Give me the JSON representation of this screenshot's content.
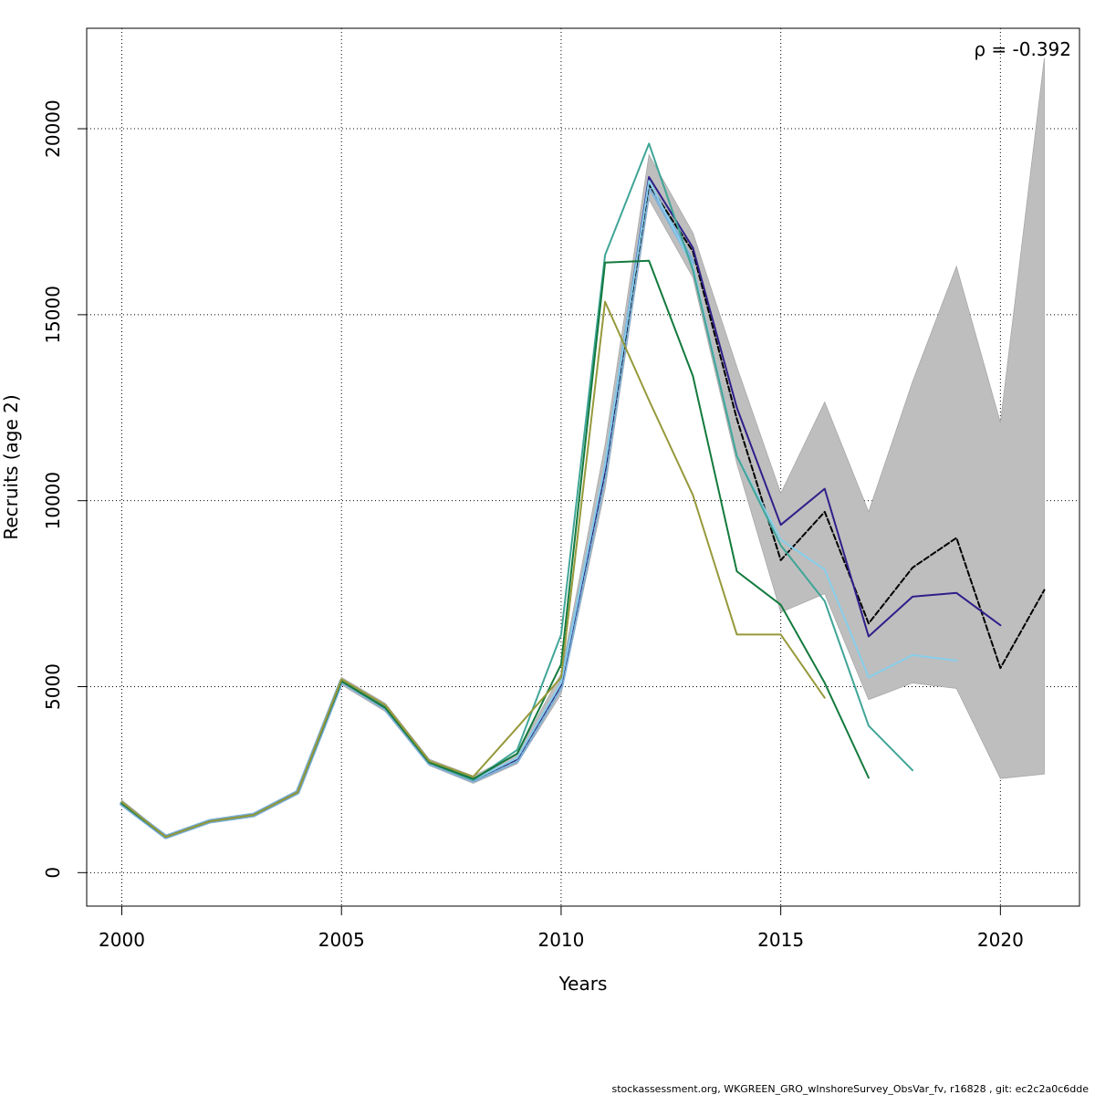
{
  "chart_data": {
    "type": "line",
    "xlabel": "Years",
    "ylabel": "Recruits (age 2)",
    "xlim": [
      1999.2,
      2021.8
    ],
    "ylim": [
      -900,
      22700
    ],
    "x_ticks": [
      2000,
      2005,
      2010,
      2015,
      2020
    ],
    "y_ticks": [
      0,
      5000,
      10000,
      15000,
      20000
    ],
    "grid": true,
    "annotation": "ρ = -0.392",
    "footer": "stockassessment.org, WKGREEN_GRO_wInshoreSurvey_ObsVar_fv, r16828 , git: ec2c2a0c6dde",
    "band": {
      "color": "#bebebe",
      "x": [
        2000,
        2001,
        2002,
        2003,
        2004,
        2005,
        2006,
        2007,
        2008,
        2009,
        2010,
        2011,
        2012,
        2013,
        2014,
        2015,
        2016,
        2017,
        2018,
        2019,
        2020,
        2021
      ],
      "lower": [
        1800,
        950,
        1350,
        1520,
        2130,
        5050,
        4330,
        2880,
        2400,
        2930,
        4800,
        10300,
        18100,
        16000,
        11000,
        7000,
        7500,
        4650,
        5100,
        4950,
        2530,
        2650
      ],
      "upper": [
        1950,
        1000,
        1420,
        1600,
        2200,
        5250,
        4550,
        3050,
        2600,
        3200,
        5350,
        11500,
        19300,
        17200,
        13600,
        10200,
        12650,
        9700,
        13200,
        16300,
        12100,
        21900
      ]
    },
    "series": [
      {
        "color": "#7fb1d9",
        "width": 5,
        "dash": false,
        "x": [
          2000,
          2001,
          2002,
          2003,
          2004,
          2005,
          2006,
          2007,
          2008,
          2009,
          2010,
          2011,
          2012,
          2013
        ],
        "values": [
          1850,
          960,
          1380,
          1550,
          2160,
          5150,
          4420,
          2950,
          2480,
          3020,
          5020,
          10750,
          18500,
          16400
        ]
      },
      {
        "color": "#000000",
        "width": 2,
        "dash": true,
        "x": [
          2000,
          2001,
          2002,
          2003,
          2004,
          2005,
          2006,
          2007,
          2008,
          2009,
          2010,
          2011,
          2012,
          2013,
          2014,
          2015,
          2016,
          2017,
          2018,
          2019,
          2020,
          2021
        ],
        "values": [
          1860,
          960,
          1380,
          1550,
          2160,
          5150,
          4430,
          2960,
          2490,
          3050,
          5050,
          10800,
          18500,
          16700,
          12200,
          8400,
          9700,
          6700,
          8200,
          9000,
          5500,
          7600
        ]
      },
      {
        "color": "#2e1f8a",
        "width": 2,
        "dash": false,
        "x": [
          2000,
          2001,
          2002,
          2003,
          2004,
          2005,
          2006,
          2007,
          2008,
          2009,
          2010,
          2011,
          2012,
          2013,
          2014,
          2015,
          2016,
          2017,
          2018,
          2019,
          2020
        ],
        "values": [
          1860,
          960,
          1380,
          1550,
          2160,
          5150,
          4430,
          2960,
          2490,
          3060,
          5060,
          10850,
          18700,
          16800,
          12500,
          9350,
          10320,
          6350,
          7420,
          7520,
          6650
        ]
      },
      {
        "color": "#87ceeb",
        "width": 2,
        "dash": false,
        "x": [
          2000,
          2001,
          2002,
          2003,
          2004,
          2005,
          2006,
          2007,
          2008,
          2009,
          2010,
          2011,
          2012,
          2013,
          2014,
          2015,
          2016,
          2017,
          2018,
          2019
        ],
        "values": [
          1860,
          960,
          1380,
          1550,
          2160,
          5150,
          4430,
          2960,
          2490,
          3080,
          5100,
          10950,
          18600,
          16300,
          11200,
          8950,
          8150,
          5250,
          5850,
          5700
        ]
      },
      {
        "color": "#40a597",
        "width": 2,
        "dash": false,
        "x": [
          2000,
          2001,
          2002,
          2003,
          2004,
          2005,
          2006,
          2007,
          2008,
          2009,
          2010,
          2011,
          2012,
          2013,
          2014,
          2015,
          2016,
          2017,
          2018
        ],
        "values": [
          1860,
          960,
          1380,
          1550,
          2160,
          5150,
          4430,
          2960,
          2490,
          3300,
          6400,
          16600,
          19600,
          16200,
          11200,
          8800,
          7300,
          3950,
          2750
        ]
      },
      {
        "color": "#137a3d",
        "width": 2,
        "dash": false,
        "x": [
          2000,
          2001,
          2002,
          2003,
          2004,
          2005,
          2006,
          2007,
          2008,
          2009,
          2010,
          2011,
          2012,
          2013,
          2014,
          2015,
          2016,
          2017
        ],
        "values": [
          1860,
          960,
          1380,
          1550,
          2160,
          5150,
          4430,
          2960,
          2520,
          3200,
          5600,
          16400,
          16450,
          13350,
          8100,
          7200,
          5100,
          2550
        ]
      },
      {
        "color": "#96993a",
        "width": 2,
        "dash": false,
        "x": [
          2000,
          2001,
          2002,
          2003,
          2004,
          2005,
          2006,
          2007,
          2008,
          2009,
          2010,
          2011,
          2012,
          2013,
          2014,
          2015,
          2016
        ],
        "values": [
          1900,
          960,
          1380,
          1550,
          2160,
          5200,
          4500,
          3000,
          2580,
          3900,
          5250,
          15350,
          12700,
          10150,
          6400,
          6400,
          4700
        ]
      }
    ]
  }
}
